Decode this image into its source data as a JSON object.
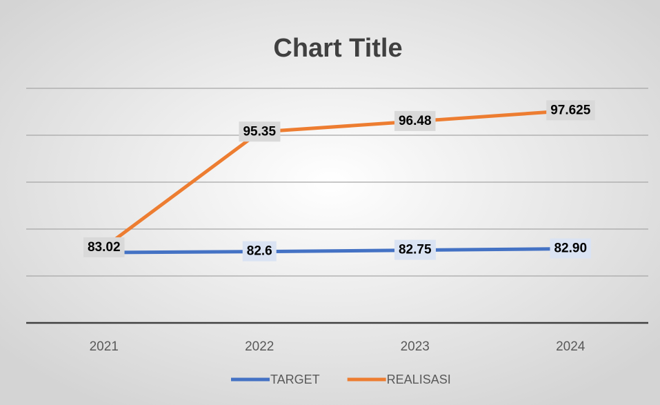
{
  "chart_data": {
    "type": "line",
    "title": "Chart Title",
    "categories": [
      "2021",
      "2022",
      "2023",
      "2024"
    ],
    "series": [
      {
        "name": "TARGET",
        "color": "#4472c4",
        "values": [
          82.5,
          82.6,
          82.75,
          82.9
        ],
        "value_labels": [
          null,
          "82.6",
          "82.75",
          "82.90"
        ]
      },
      {
        "name": "REALISASI",
        "color": "#ed7d31",
        "values": [
          83.02,
          95.35,
          96.48,
          97.625
        ]
      }
    ],
    "ylim": [
      75,
      100
    ],
    "yticks": [
      75,
      80,
      85,
      90,
      95,
      100
    ],
    "grid": true,
    "legend": "bottom"
  }
}
